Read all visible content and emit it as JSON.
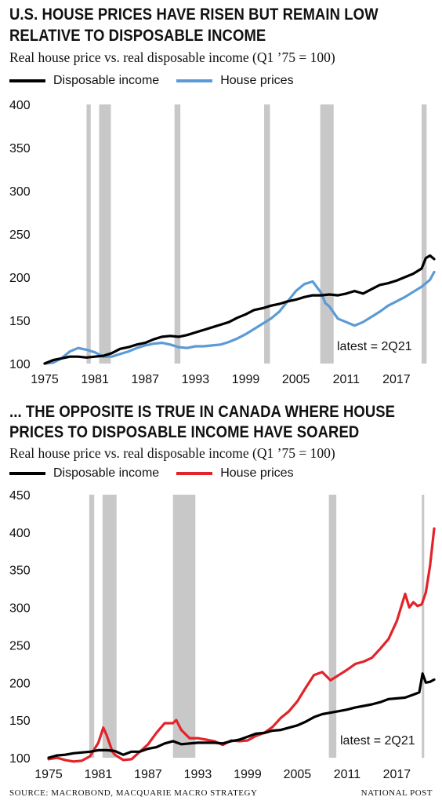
{
  "charts": [
    {
      "title_line1": "U.S. HOUSE PRICES HAVE RISEN BUT REMAIN LOW",
      "title_line2": "RELATIVE TO DISPOSABLE INCOME",
      "subtitle": "Real house price vs. real disposable income (Q1 ’75 = 100)",
      "annotation": "latest = 2Q21"
    },
    {
      "title_line1": "... THE OPPOSITE IS TRUE IN CANADA WHERE HOUSE",
      "title_line2": "PRICES TO DISPOSABLE INCOME HAVE SOARED",
      "subtitle": "Real house price vs. real disposable income (Q1 ’75 = 100)",
      "annotation": "latest = 2Q21"
    }
  ],
  "footer": {
    "source": "SOURCE: MACROBOND, MACQUARIE MACRO STRATEGY",
    "publisher": "NATIONAL POST"
  },
  "colors": {
    "income": "#000000",
    "us_house": "#5b9bd5",
    "ca_house": "#e2232a",
    "recession": "#c8c8c8"
  },
  "chart_data": [
    {
      "type": "line",
      "title": "U.S. HOUSE PRICES HAVE RISEN BUT REMAIN LOW RELATIVE TO DISPOSABLE INCOME",
      "subtitle": "Real house price vs. real disposable income (Q1 ’75 = 100)",
      "xlabel": "",
      "ylabel": "",
      "xlim": [
        1975,
        2021.5
      ],
      "ylim": [
        100,
        400
      ],
      "xticks": [
        1975,
        1981,
        1987,
        1993,
        1999,
        2005,
        2011,
        2017
      ],
      "yticks": [
        100,
        150,
        200,
        250,
        300,
        350,
        400
      ],
      "grid": false,
      "legend": "top-left",
      "recessions": [
        [
          1980.0,
          1980.5
        ],
        [
          1981.5,
          1982.9
        ],
        [
          1990.5,
          1991.2
        ],
        [
          2001.2,
          2001.9
        ],
        [
          2007.9,
          2009.5
        ],
        [
          2020.0,
          2020.6
        ]
      ],
      "series": [
        {
          "name": "Disposable income",
          "color": "#000000",
          "points": [
            [
              1975,
              100
            ],
            [
              1976,
              104
            ],
            [
              1977,
              106
            ],
            [
              1978,
              108
            ],
            [
              1979,
              108
            ],
            [
              1980,
              107
            ],
            [
              1981,
              108
            ],
            [
              1982,
              109
            ],
            [
              1983,
              112
            ],
            [
              1984,
              117
            ],
            [
              1985,
              119
            ],
            [
              1986,
              122
            ],
            [
              1987,
              124
            ],
            [
              1988,
              128
            ],
            [
              1989,
              131
            ],
            [
              1990,
              132
            ],
            [
              1991,
              131
            ],
            [
              1992,
              133
            ],
            [
              1993,
              136
            ],
            [
              1994,
              139
            ],
            [
              1995,
              142
            ],
            [
              1996,
              145
            ],
            [
              1997,
              148
            ],
            [
              1998,
              153
            ],
            [
              1999,
              157
            ],
            [
              2000,
              162
            ],
            [
              2001,
              164
            ],
            [
              2002,
              167
            ],
            [
              2003,
              169
            ],
            [
              2004,
              172
            ],
            [
              2005,
              174
            ],
            [
              2006,
              177
            ],
            [
              2007,
              179
            ],
            [
              2008,
              179
            ],
            [
              2009,
              180
            ],
            [
              2010,
              179
            ],
            [
              2011,
              181
            ],
            [
              2012,
              184
            ],
            [
              2013,
              181
            ],
            [
              2014,
              186
            ],
            [
              2015,
              191
            ],
            [
              2016,
              193
            ],
            [
              2017,
              196
            ],
            [
              2018,
              200
            ],
            [
              2019,
              204
            ],
            [
              2020,
              210
            ],
            [
              2020.5,
              222
            ],
            [
              2021,
              225
            ],
            [
              2021.5,
              221
            ]
          ]
        },
        {
          "name": "House prices",
          "color": "#5b9bd5",
          "points": [
            [
              1975,
              100
            ],
            [
              1976,
              101
            ],
            [
              1977,
              106
            ],
            [
              1978,
              114
            ],
            [
              1979,
              118
            ],
            [
              1980,
              116
            ],
            [
              1981,
              113
            ],
            [
              1982,
              108
            ],
            [
              1983,
              108
            ],
            [
              1984,
              111
            ],
            [
              1985,
              114
            ],
            [
              1986,
              118
            ],
            [
              1987,
              121
            ],
            [
              1988,
              123
            ],
            [
              1989,
              124
            ],
            [
              1990,
              122
            ],
            [
              1991,
              119
            ],
            [
              1992,
              118
            ],
            [
              1993,
              120
            ],
            [
              1994,
              120
            ],
            [
              1995,
              121
            ],
            [
              1996,
              122
            ],
            [
              1997,
              125
            ],
            [
              1998,
              129
            ],
            [
              1999,
              134
            ],
            [
              2000,
              140
            ],
            [
              2001,
              146
            ],
            [
              2002,
              152
            ],
            [
              2003,
              160
            ],
            [
              2004,
              172
            ],
            [
              2005,
              184
            ],
            [
              2006,
              192
            ],
            [
              2007,
              195
            ],
            [
              2008,
              182
            ],
            [
              2008.5,
              170
            ],
            [
              2009,
              166
            ],
            [
              2010,
              152
            ],
            [
              2011,
              148
            ],
            [
              2012,
              144
            ],
            [
              2013,
              148
            ],
            [
              2014,
              154
            ],
            [
              2015,
              160
            ],
            [
              2016,
              167
            ],
            [
              2017,
              172
            ],
            [
              2018,
              177
            ],
            [
              2019,
              183
            ],
            [
              2020,
              189
            ],
            [
              2021,
              197
            ],
            [
              2021.5,
              206
            ]
          ]
        }
      ]
    },
    {
      "type": "line",
      "title": "... THE OPPOSITE IS TRUE IN CANADA WHERE HOUSE PRICES TO DISPOSABLE INCOME HAVE SOARED",
      "subtitle": "Real house price vs. real disposable income (Q1 ’75 = 100)",
      "xlabel": "",
      "ylabel": "",
      "xlim": [
        1975,
        2021.5
      ],
      "ylim": [
        100,
        450
      ],
      "xticks": [
        1975,
        1981,
        1987,
        1993,
        1999,
        2005,
        2011,
        2017
      ],
      "yticks": [
        100,
        150,
        200,
        250,
        300,
        350,
        400,
        450
      ],
      "grid": false,
      "legend": "top-left",
      "recessions": [
        [
          1979.9,
          1980.5
        ],
        [
          1981.5,
          1983.2
        ],
        [
          1990.0,
          1992.7
        ],
        [
          2008.8,
          2009.7
        ],
        [
          2020.0,
          2020.3
        ]
      ],
      "series": [
        {
          "name": "Disposable income",
          "color": "#000000",
          "points": [
            [
              1975,
              100
            ],
            [
              1976,
              103
            ],
            [
              1977,
              104
            ],
            [
              1978,
              106
            ],
            [
              1979,
              107
            ],
            [
              1980,
              108
            ],
            [
              1981,
              110
            ],
            [
              1982,
              110
            ],
            [
              1983,
              109
            ],
            [
              1984,
              104
            ],
            [
              1985,
              108
            ],
            [
              1986,
              108
            ],
            [
              1987,
              112
            ],
            [
              1988,
              114
            ],
            [
              1989,
              119
            ],
            [
              1990,
              122
            ],
            [
              1991,
              118
            ],
            [
              1992,
              119
            ],
            [
              1993,
              120
            ],
            [
              1994,
              120
            ],
            [
              1995,
              120
            ],
            [
              1996,
              119
            ],
            [
              1997,
              122
            ],
            [
              1998,
              124
            ],
            [
              1999,
              128
            ],
            [
              2000,
              132
            ],
            [
              2001,
              133
            ],
            [
              2002,
              136
            ],
            [
              2003,
              137
            ],
            [
              2004,
              140
            ],
            [
              2005,
              143
            ],
            [
              2006,
              148
            ],
            [
              2007,
              154
            ],
            [
              2008,
              158
            ],
            [
              2009,
              160
            ],
            [
              2010,
              162
            ],
            [
              2011,
              164
            ],
            [
              2012,
              167
            ],
            [
              2013,
              169
            ],
            [
              2014,
              171
            ],
            [
              2015,
              174
            ],
            [
              2016,
              178
            ],
            [
              2017,
              179
            ],
            [
              2018,
              180
            ],
            [
              2019,
              184
            ],
            [
              2019.7,
              187
            ],
            [
              2020.1,
              212
            ],
            [
              2020.5,
              200
            ],
            [
              2021,
              201
            ],
            [
              2021.5,
              204
            ]
          ]
        },
        {
          "name": "House prices",
          "color": "#e2232a",
          "points": [
            [
              1975,
              98
            ],
            [
              1976,
              100
            ],
            [
              1977,
              97
            ],
            [
              1978,
              95
            ],
            [
              1979,
              96
            ],
            [
              1980,
              102
            ],
            [
              1981,
              120
            ],
            [
              1981.6,
              140
            ],
            [
              1982,
              130
            ],
            [
              1982.7,
              108
            ],
            [
              1983,
              104
            ],
            [
              1984,
              97
            ],
            [
              1985,
              98
            ],
            [
              1986,
              108
            ],
            [
              1987,
              118
            ],
            [
              1988,
              133
            ],
            [
              1989,
              146
            ],
            [
              1990,
              146
            ],
            [
              1990.4,
              150
            ],
            [
              1991,
              137
            ],
            [
              1992,
              126
            ],
            [
              1993,
              126
            ],
            [
              1994,
              124
            ],
            [
              1995,
              122
            ],
            [
              1996,
              117
            ],
            [
              1997,
              123
            ],
            [
              1998,
              122
            ],
            [
              1999,
              123
            ],
            [
              2000,
              129
            ],
            [
              2001,
              133
            ],
            [
              2002,
              141
            ],
            [
              2003,
              153
            ],
            [
              2004,
              162
            ],
            [
              2005,
              175
            ],
            [
              2006,
              193
            ],
            [
              2007,
              210
            ],
            [
              2008,
              214
            ],
            [
              2009,
              203
            ],
            [
              2010,
              210
            ],
            [
              2011,
              217
            ],
            [
              2012,
              225
            ],
            [
              2013,
              228
            ],
            [
              2014,
              233
            ],
            [
              2015,
              245
            ],
            [
              2016,
              258
            ],
            [
              2017,
              282
            ],
            [
              2018,
              318
            ],
            [
              2018.5,
              300
            ],
            [
              2019,
              307
            ],
            [
              2019.5,
              302
            ],
            [
              2020,
              304
            ],
            [
              2020.5,
              320
            ],
            [
              2021,
              355
            ],
            [
              2021.5,
              405
            ]
          ]
        }
      ]
    }
  ]
}
